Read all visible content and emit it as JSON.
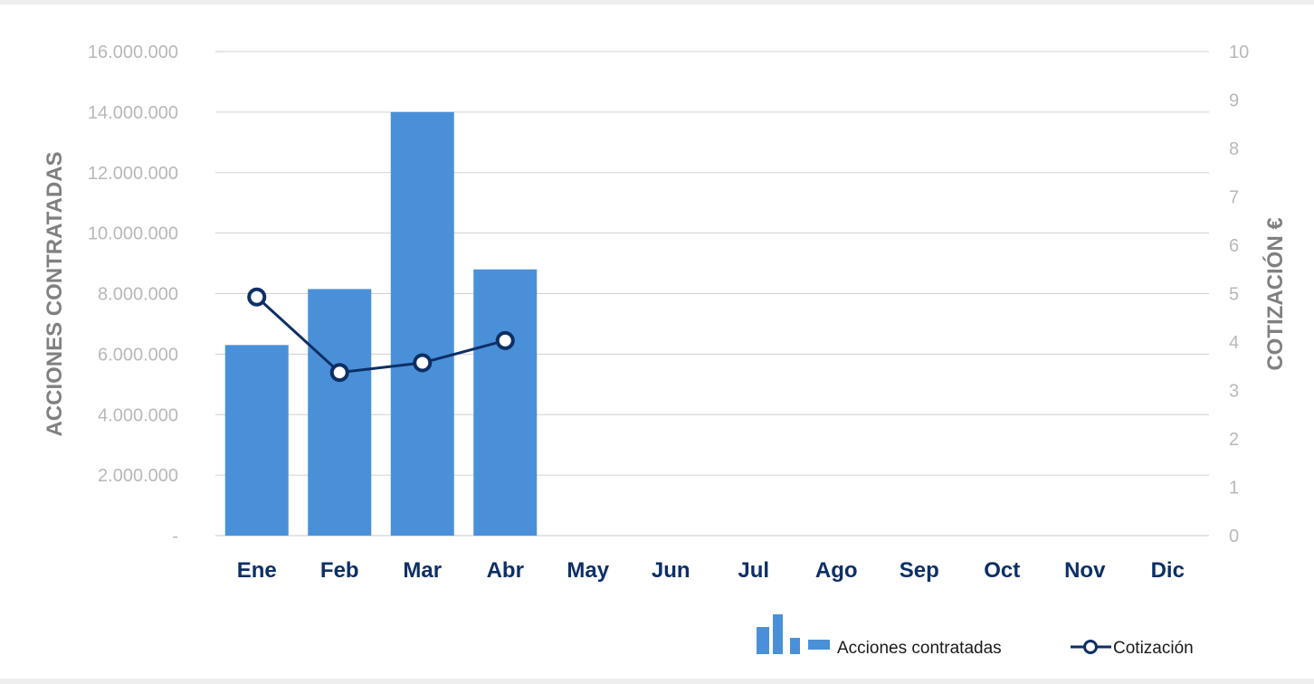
{
  "chart_data": {
    "type": "bar",
    "categories": [
      "Ene",
      "Feb",
      "Mar",
      "Abr",
      "May",
      "Jun",
      "Jul",
      "Ago",
      "Sep",
      "Oct",
      "Nov",
      "Dic"
    ],
    "series": [
      {
        "name": "Acciones contratadas",
        "type": "bar",
        "axis": "left",
        "color": "#4a90d9",
        "values": [
          6300000,
          8150000,
          14000000,
          8800000,
          null,
          null,
          null,
          null,
          null,
          null,
          null,
          null
        ]
      },
      {
        "name": "Cotización",
        "type": "line",
        "axis": "right",
        "color": "#0d2f66",
        "marker": "open-circle",
        "values": [
          4.93,
          3.37,
          3.57,
          4.03,
          null,
          null,
          null,
          null,
          null,
          null,
          null,
          null
        ]
      }
    ],
    "ylabel": "ACCIONES CONTRATADAS",
    "ylabel_right": "COTIZACIÓN €",
    "ylim": [
      0,
      16000000
    ],
    "ylim_right": [
      0,
      10
    ],
    "yticks_left": [
      "-",
      "2.000.000",
      "4.000.000",
      "6.000.000",
      "8.000.000",
      "10.000.000",
      "12.000.000",
      "14.000.000",
      "16.000.000"
    ],
    "yticks_right": [
      "0",
      "1",
      "2",
      "3",
      "4",
      "5",
      "6",
      "7",
      "8",
      "9",
      "10"
    ],
    "grid": true,
    "legend_position": "bottom-right"
  }
}
